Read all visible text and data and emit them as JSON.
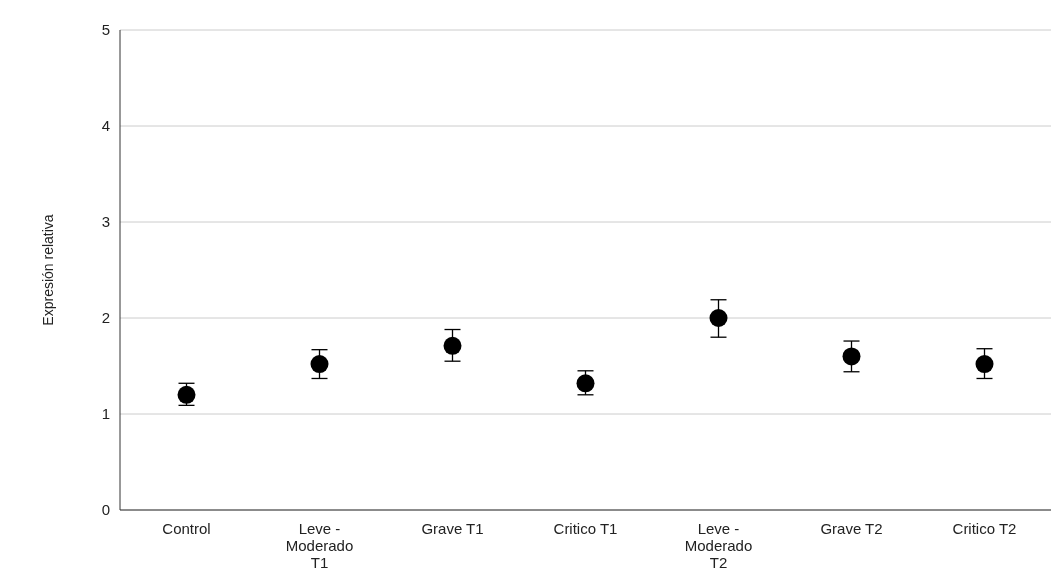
{
  "chart_data": {
    "type": "scatter",
    "ylabel": "Expresión relativa",
    "categories": [
      "Control",
      "Leve - Moderado T1",
      "Grave T1",
      "Critico T1",
      "Leve - Moderado T2",
      "Grave T2",
      "Critico T2"
    ],
    "series": [
      {
        "color": "#000000",
        "values": [
          1.2,
          1.52,
          1.71,
          1.32,
          2.0,
          1.6,
          1.52
        ],
        "errors": [
          [
            1.09,
            1.32
          ],
          [
            1.37,
            1.67
          ],
          [
            1.55,
            1.88
          ],
          [
            1.2,
            1.45
          ],
          [
            1.8,
            2.19
          ],
          [
            1.44,
            1.76
          ],
          [
            1.37,
            1.68
          ]
        ]
      }
    ],
    "ylim": [
      0,
      5
    ],
    "yticks": [
      0,
      1,
      2,
      3,
      4,
      5
    ],
    "grid": "y",
    "marker": "circle"
  }
}
